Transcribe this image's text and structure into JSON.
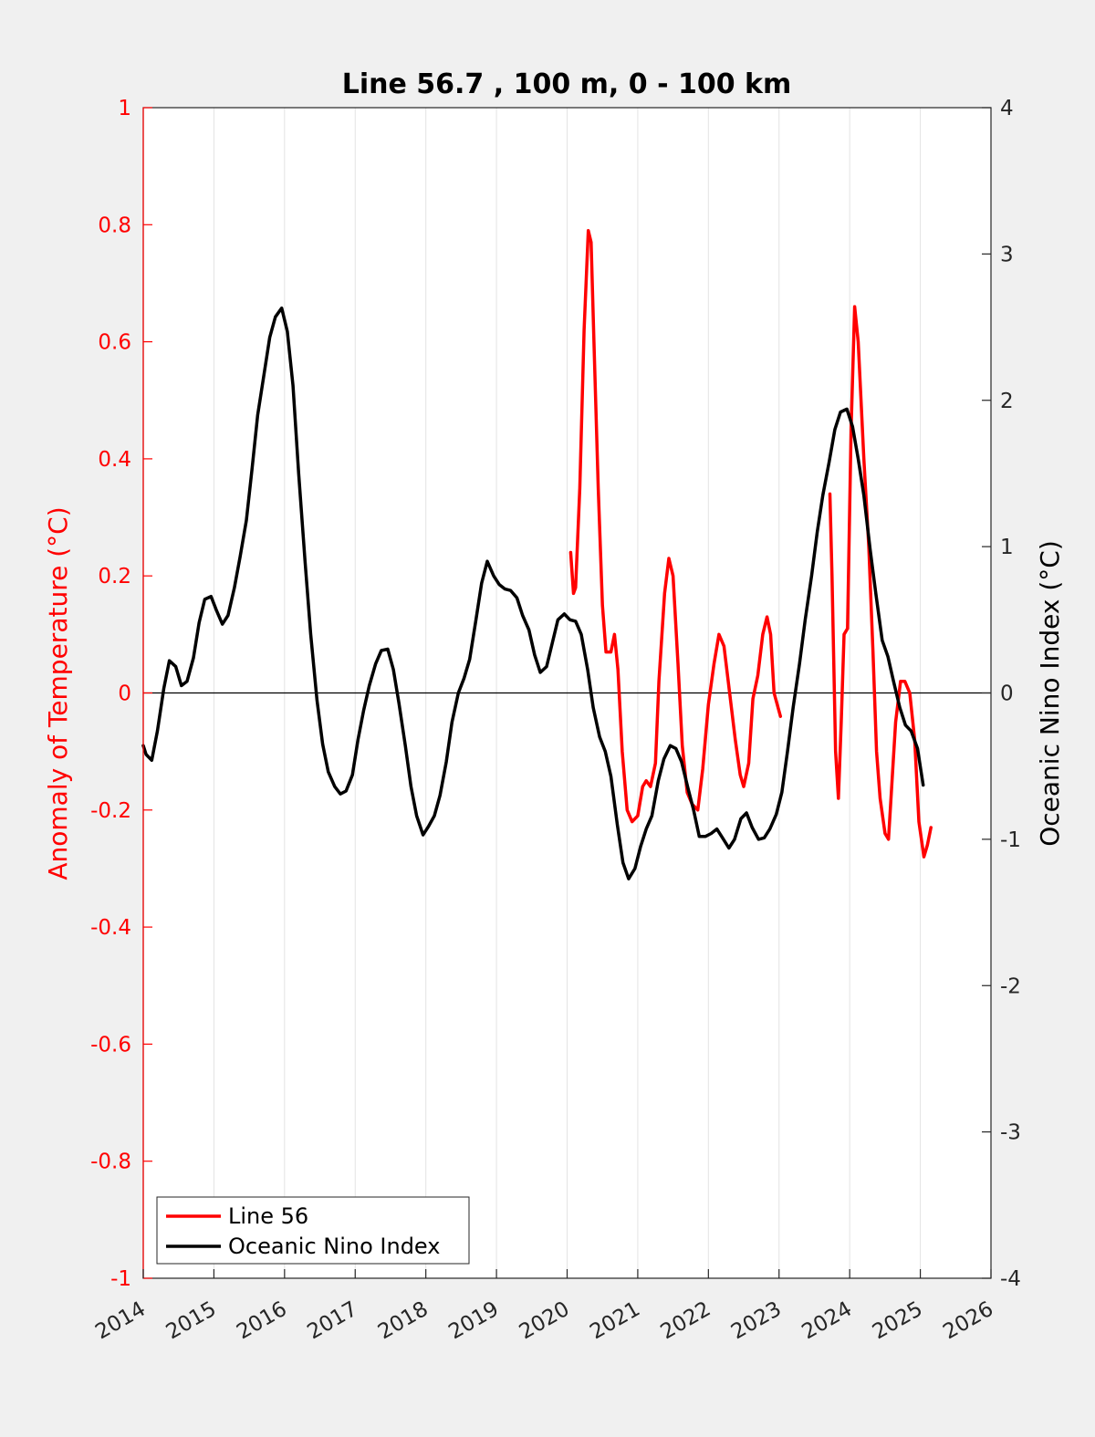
{
  "chart_data": {
    "type": "line",
    "title": "Line 56.7 , 100 m, 0 - 100 km",
    "xlabel": "",
    "xlim": [
      2014,
      2026
    ],
    "x_ticks": [
      "2014",
      "2015",
      "2016",
      "2017",
      "2018",
      "2019",
      "2020",
      "2021",
      "2022",
      "2023",
      "2024",
      "2025",
      "2026"
    ],
    "grid": "vertical",
    "legend_position": "bottom-left",
    "left_axis": {
      "label": "Anomaly of Temperature (°C)",
      "ylim": [
        -1,
        1
      ],
      "ticks": [
        "1",
        "0.8",
        "0.6",
        "0.4",
        "0.2",
        "0",
        "-0.2",
        "-0.4",
        "-0.6",
        "-0.8",
        "-1"
      ],
      "color": "#ff0000"
    },
    "right_axis": {
      "label": "Oceanic Nino Index (°C)",
      "ylim": [
        -4,
        4
      ],
      "ticks": [
        "4",
        "3",
        "2",
        "1",
        "0",
        "-1",
        "-2",
        "-3",
        "-4"
      ],
      "color": "#000000"
    },
    "series": [
      {
        "name": "Line 56",
        "axis": "left",
        "color": "#ff0000",
        "segments": [
          [
            [
              2020.05,
              0.24
            ],
            [
              2020.09,
              0.17
            ],
            [
              2020.12,
              0.18
            ],
            [
              2020.18,
              0.35
            ],
            [
              2020.24,
              0.62
            ],
            [
              2020.3,
              0.79
            ],
            [
              2020.34,
              0.77
            ],
            [
              2020.38,
              0.6
            ],
            [
              2020.44,
              0.35
            ],
            [
              2020.5,
              0.15
            ],
            [
              2020.55,
              0.07
            ],
            [
              2020.62,
              0.07
            ],
            [
              2020.67,
              0.1
            ],
            [
              2020.72,
              0.04
            ],
            [
              2020.78,
              -0.1
            ],
            [
              2020.85,
              -0.2
            ],
            [
              2020.92,
              -0.22
            ],
            [
              2021.0,
              -0.21
            ],
            [
              2021.07,
              -0.16
            ],
            [
              2021.12,
              -0.15
            ],
            [
              2021.18,
              -0.16
            ],
            [
              2021.25,
              -0.12
            ],
            [
              2021.3,
              0.02
            ],
            [
              2021.38,
              0.17
            ],
            [
              2021.44,
              0.23
            ],
            [
              2021.5,
              0.2
            ],
            [
              2021.57,
              0.05
            ],
            [
              2021.63,
              -0.09
            ],
            [
              2021.7,
              -0.17
            ],
            [
              2021.77,
              -0.19
            ],
            [
              2021.85,
              -0.2
            ],
            [
              2021.92,
              -0.13
            ],
            [
              2022.0,
              -0.02
            ],
            [
              2022.08,
              0.05
            ],
            [
              2022.15,
              0.1
            ],
            [
              2022.22,
              0.08
            ],
            [
              2022.3,
              0.0
            ],
            [
              2022.38,
              -0.08
            ],
            [
              2022.45,
              -0.14
            ],
            [
              2022.5,
              -0.16
            ],
            [
              2022.57,
              -0.12
            ],
            [
              2022.63,
              -0.01
            ],
            [
              2022.7,
              0.03
            ],
            [
              2022.77,
              0.1
            ],
            [
              2022.83,
              0.13
            ],
            [
              2022.88,
              0.1
            ],
            [
              2022.93,
              0.0
            ],
            [
              2023.02,
              -0.04
            ]
          ],
          [
            [
              2023.72,
              0.34
            ],
            [
              2023.75,
              0.2
            ],
            [
              2023.8,
              -0.1
            ],
            [
              2023.84,
              -0.18
            ],
            [
              2023.88,
              -0.05
            ],
            [
              2023.92,
              0.1
            ],
            [
              2023.97,
              0.11
            ],
            [
              2024.02,
              0.45
            ],
            [
              2024.07,
              0.66
            ],
            [
              2024.12,
              0.6
            ],
            [
              2024.2,
              0.4
            ],
            [
              2024.27,
              0.25
            ],
            [
              2024.33,
              0.07
            ],
            [
              2024.38,
              -0.1
            ],
            [
              2024.43,
              -0.18
            ],
            [
              2024.5,
              -0.24
            ],
            [
              2024.55,
              -0.25
            ],
            [
              2024.6,
              -0.15
            ],
            [
              2024.65,
              -0.05
            ],
            [
              2024.72,
              0.02
            ],
            [
              2024.78,
              0.02
            ],
            [
              2024.85,
              0.0
            ],
            [
              2024.92,
              -0.08
            ],
            [
              2024.98,
              -0.22
            ],
            [
              2025.05,
              -0.28
            ],
            [
              2025.1,
              -0.26
            ],
            [
              2025.15,
              -0.23
            ]
          ]
        ]
      },
      {
        "name": "Oceanic Nino Index",
        "axis": "right",
        "color": "#000000",
        "segments": [
          [
            [
              2014.0,
              -0.36
            ],
            [
              2014.04,
              -0.42
            ],
            [
              2014.12,
              -0.46
            ],
            [
              2014.2,
              -0.26
            ],
            [
              2014.29,
              0.03
            ],
            [
              2014.37,
              0.22
            ],
            [
              2014.46,
              0.18
            ],
            [
              2014.54,
              0.05
            ],
            [
              2014.62,
              0.08
            ],
            [
              2014.71,
              0.24
            ],
            [
              2014.79,
              0.48
            ],
            [
              2014.87,
              0.64
            ],
            [
              2014.96,
              0.66
            ],
            [
              2015.04,
              0.56
            ],
            [
              2015.12,
              0.47
            ],
            [
              2015.2,
              0.53
            ],
            [
              2015.29,
              0.72
            ],
            [
              2015.37,
              0.93
            ],
            [
              2015.46,
              1.18
            ],
            [
              2015.54,
              1.53
            ],
            [
              2015.62,
              1.9
            ],
            [
              2015.71,
              2.18
            ],
            [
              2015.79,
              2.43
            ],
            [
              2015.87,
              2.57
            ],
            [
              2015.96,
              2.63
            ],
            [
              2016.04,
              2.47
            ],
            [
              2016.12,
              2.1
            ],
            [
              2016.2,
              1.5
            ],
            [
              2016.29,
              0.9
            ],
            [
              2016.37,
              0.4
            ],
            [
              2016.46,
              -0.05
            ],
            [
              2016.54,
              -0.35
            ],
            [
              2016.62,
              -0.54
            ],
            [
              2016.71,
              -0.64
            ],
            [
              2016.79,
              -0.69
            ],
            [
              2016.87,
              -0.67
            ],
            [
              2016.96,
              -0.56
            ],
            [
              2017.04,
              -0.32
            ],
            [
              2017.12,
              -0.12
            ],
            [
              2017.2,
              0.05
            ],
            [
              2017.29,
              0.2
            ],
            [
              2017.37,
              0.29
            ],
            [
              2017.46,
              0.3
            ],
            [
              2017.54,
              0.16
            ],
            [
              2017.62,
              -0.07
            ],
            [
              2017.71,
              -0.36
            ],
            [
              2017.79,
              -0.64
            ],
            [
              2017.87,
              -0.84
            ],
            [
              2017.96,
              -0.97
            ],
            [
              2018.04,
              -0.91
            ],
            [
              2018.12,
              -0.84
            ],
            [
              2018.2,
              -0.7
            ],
            [
              2018.29,
              -0.47
            ],
            [
              2018.37,
              -0.2
            ],
            [
              2018.46,
              0.0
            ],
            [
              2018.54,
              0.1
            ],
            [
              2018.62,
              0.23
            ],
            [
              2018.71,
              0.5
            ],
            [
              2018.79,
              0.75
            ],
            [
              2018.87,
              0.9
            ],
            [
              2018.96,
              0.8
            ],
            [
              2019.04,
              0.74
            ],
            [
              2019.12,
              0.71
            ],
            [
              2019.2,
              0.7
            ],
            [
              2019.29,
              0.65
            ],
            [
              2019.37,
              0.53
            ],
            [
              2019.46,
              0.43
            ],
            [
              2019.54,
              0.26
            ],
            [
              2019.62,
              0.14
            ],
            [
              2019.71,
              0.18
            ],
            [
              2019.79,
              0.34
            ],
            [
              2019.87,
              0.5
            ],
            [
              2019.96,
              0.54
            ],
            [
              2020.04,
              0.5
            ],
            [
              2020.12,
              0.49
            ],
            [
              2020.2,
              0.4
            ],
            [
              2020.29,
              0.16
            ],
            [
              2020.37,
              -0.1
            ],
            [
              2020.46,
              -0.3
            ],
            [
              2020.54,
              -0.4
            ],
            [
              2020.62,
              -0.57
            ],
            [
              2020.71,
              -0.9
            ],
            [
              2020.79,
              -1.16
            ],
            [
              2020.87,
              -1.27
            ],
            [
              2020.96,
              -1.2
            ],
            [
              2021.04,
              -1.05
            ],
            [
              2021.12,
              -0.93
            ],
            [
              2021.2,
              -0.84
            ],
            [
              2021.29,
              -0.6
            ],
            [
              2021.37,
              -0.45
            ],
            [
              2021.46,
              -0.36
            ],
            [
              2021.54,
              -0.38
            ],
            [
              2021.62,
              -0.47
            ],
            [
              2021.71,
              -0.65
            ],
            [
              2021.79,
              -0.8
            ],
            [
              2021.87,
              -0.98
            ],
            [
              2021.96,
              -0.98
            ],
            [
              2022.04,
              -0.96
            ],
            [
              2022.12,
              -0.93
            ],
            [
              2022.2,
              -0.99
            ],
            [
              2022.29,
              -1.06
            ],
            [
              2022.37,
              -1.0
            ],
            [
              2022.46,
              -0.86
            ],
            [
              2022.54,
              -0.82
            ],
            [
              2022.62,
              -0.92
            ],
            [
              2022.71,
              -1.0
            ],
            [
              2022.79,
              -0.99
            ],
            [
              2022.87,
              -0.93
            ],
            [
              2022.96,
              -0.83
            ],
            [
              2023.04,
              -0.68
            ],
            [
              2023.12,
              -0.4
            ],
            [
              2023.2,
              -0.1
            ],
            [
              2023.29,
              0.2
            ],
            [
              2023.37,
              0.5
            ],
            [
              2023.46,
              0.8
            ],
            [
              2023.54,
              1.1
            ],
            [
              2023.62,
              1.35
            ],
            [
              2023.71,
              1.58
            ],
            [
              2023.79,
              1.8
            ],
            [
              2023.87,
              1.92
            ],
            [
              2023.96,
              1.94
            ],
            [
              2024.04,
              1.82
            ],
            [
              2024.12,
              1.6
            ],
            [
              2024.2,
              1.35
            ],
            [
              2024.29,
              0.98
            ],
            [
              2024.37,
              0.68
            ],
            [
              2024.46,
              0.36
            ],
            [
              2024.54,
              0.25
            ],
            [
              2024.62,
              0.08
            ],
            [
              2024.71,
              -0.1
            ],
            [
              2024.79,
              -0.22
            ],
            [
              2024.87,
              -0.26
            ],
            [
              2024.96,
              -0.38
            ],
            [
              2025.04,
              -0.63
            ]
          ]
        ]
      }
    ]
  }
}
